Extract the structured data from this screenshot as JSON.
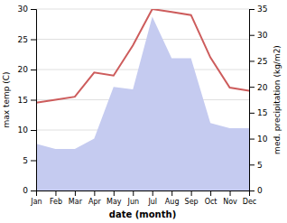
{
  "chart_data": {
    "type": "line",
    "xlabel": "date (month)",
    "ylabel": "max temp (C)",
    "y2label": "med. precipitation (kg/m2)",
    "categories": [
      "Jan",
      "Feb",
      "Mar",
      "Apr",
      "May",
      "Jun",
      "Jul",
      "Aug",
      "Sep",
      "Oct",
      "Nov",
      "Dec"
    ],
    "series": [
      {
        "type": "area",
        "axis": "y2",
        "color": "#c5cbf0",
        "values": [
          9.0,
          8.0,
          8.0,
          10.0,
          20.0,
          19.5,
          33.5,
          25.5,
          25.5,
          13.0,
          12.0,
          12.0
        ]
      },
      {
        "type": "line",
        "color": "#cd5c5c",
        "values": [
          14.5,
          15.0,
          15.5,
          19.5,
          19.0,
          24.0,
          30.0,
          29.5,
          29.0,
          22.0,
          17.0,
          16.5
        ]
      }
    ],
    "ylim": [
      0,
      30
    ],
    "yticks": [
      0,
      5,
      10,
      15,
      20,
      25,
      30
    ],
    "y2lim": [
      0,
      35
    ],
    "y2ticks": [
      0,
      5,
      10,
      15,
      20,
      25,
      30,
      35
    ],
    "grid": true
  }
}
